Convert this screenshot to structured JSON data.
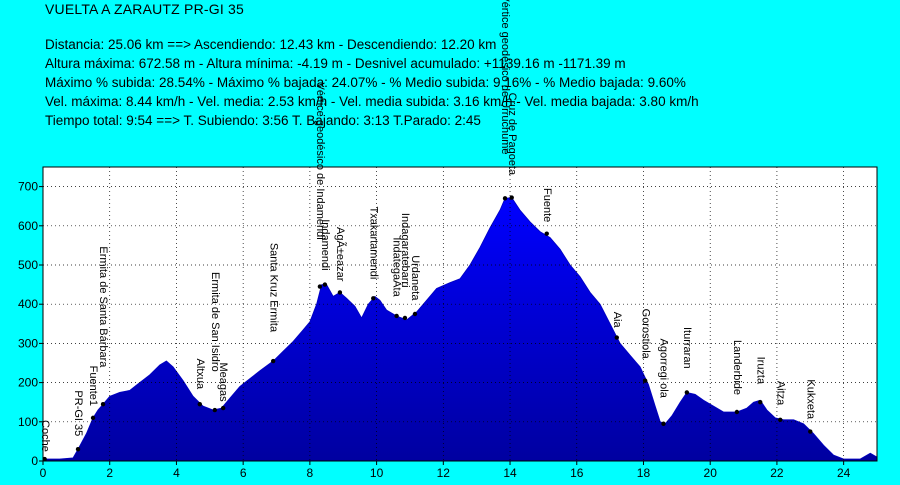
{
  "header": {
    "title": "VUELTA A ZARAUTZ PR-GI 35",
    "lines": [
      "Distancia: 25.06 km   ==>   Ascendiendo: 12.43 km - Descendiendo: 12.20 km",
      "Altura máxima: 672.58 m - Altura mínima: -4.19 m - Desnivel acumulado: +1139.16 m  -1171.39 m",
      "Máximo % subida: 28.54%  - Máximo % bajada: 24.07%  - % Medio subida: 9.16%  - % Medio bajada: 9.60%",
      "Vel. máxima: 8.44 km/h - Vel. media: 2.53 km/h - Vel. media subida: 3.16 km/h - Vel. media bajada: 3.80 km/h",
      "Tiempo total: 9:54   ==>   T. Subiendo: 3:56  T. Bajando: 3:13  T.Parado: 2:45"
    ]
  },
  "colors": {
    "background": "#00FFFF",
    "plot_background": "#FFFFFF",
    "fill_top": "#0000FF",
    "fill_bottom": "#0000A0",
    "grid": "#000000",
    "text": "#000000"
  },
  "chart_data": {
    "type": "area",
    "title": "",
    "xlabel": "",
    "ylabel": "",
    "xlim": [
      0,
      25
    ],
    "ylim": [
      0,
      750
    ],
    "x_ticks": [
      0,
      2,
      4,
      6,
      8,
      10,
      12,
      14,
      16,
      18,
      20,
      22,
      24
    ],
    "y_ticks": [
      0,
      100,
      200,
      300,
      400,
      500,
      600,
      700
    ],
    "grid": "dotted",
    "series": [
      {
        "name": "",
        "points": [
          [
            0,
            5
          ],
          [
            0.5,
            5
          ],
          [
            0.9,
            8
          ],
          [
            1.05,
            30
          ],
          [
            1.3,
            70
          ],
          [
            1.5,
            110
          ],
          [
            1.65,
            130
          ],
          [
            1.8,
            145
          ],
          [
            2.0,
            165
          ],
          [
            2.3,
            175
          ],
          [
            2.6,
            180
          ],
          [
            2.9,
            200
          ],
          [
            3.2,
            220
          ],
          [
            3.5,
            245
          ],
          [
            3.7,
            255
          ],
          [
            3.9,
            240
          ],
          [
            4.2,
            205
          ],
          [
            4.5,
            165
          ],
          [
            4.8,
            140
          ],
          [
            5.1,
            130
          ],
          [
            5.35,
            135
          ],
          [
            5.6,
            160
          ],
          [
            5.9,
            190
          ],
          [
            6.2,
            210
          ],
          [
            6.5,
            230
          ],
          [
            6.9,
            255
          ],
          [
            7.2,
            280
          ],
          [
            7.5,
            305
          ],
          [
            7.8,
            335
          ],
          [
            8.0,
            355
          ],
          [
            8.2,
            400
          ],
          [
            8.35,
            450
          ],
          [
            8.5,
            450
          ],
          [
            8.7,
            420
          ],
          [
            8.9,
            430
          ],
          [
            9.1,
            415
          ],
          [
            9.35,
            395
          ],
          [
            9.55,
            365
          ],
          [
            9.75,
            400
          ],
          [
            9.95,
            420
          ],
          [
            10.1,
            410
          ],
          [
            10.3,
            385
          ],
          [
            10.6,
            370
          ],
          [
            10.9,
            360
          ],
          [
            11.2,
            380
          ],
          [
            11.5,
            410
          ],
          [
            11.8,
            440
          ],
          [
            12.2,
            455
          ],
          [
            12.5,
            465
          ],
          [
            12.8,
            500
          ],
          [
            13.1,
            545
          ],
          [
            13.4,
            595
          ],
          [
            13.7,
            640
          ],
          [
            13.85,
            670
          ],
          [
            14.05,
            672
          ],
          [
            14.3,
            640
          ],
          [
            14.6,
            610
          ],
          [
            14.9,
            585
          ],
          [
            15.2,
            570
          ],
          [
            15.5,
            540
          ],
          [
            15.8,
            500
          ],
          [
            16.1,
            470
          ],
          [
            16.4,
            430
          ],
          [
            16.7,
            400
          ],
          [
            17.0,
            350
          ],
          [
            17.3,
            300
          ],
          [
            17.6,
            270
          ],
          [
            17.9,
            240
          ],
          [
            18.15,
            195
          ],
          [
            18.35,
            140
          ],
          [
            18.5,
            100
          ],
          [
            18.65,
            95
          ],
          [
            18.85,
            115
          ],
          [
            19.1,
            150
          ],
          [
            19.3,
            175
          ],
          [
            19.55,
            170
          ],
          [
            19.8,
            155
          ],
          [
            20.1,
            140
          ],
          [
            20.4,
            125
          ],
          [
            20.8,
            125
          ],
          [
            21.1,
            135
          ],
          [
            21.3,
            150
          ],
          [
            21.5,
            155
          ],
          [
            21.7,
            130
          ],
          [
            21.95,
            110
          ],
          [
            22.2,
            105
          ],
          [
            22.5,
            105
          ],
          [
            22.8,
            95
          ],
          [
            23.1,
            70
          ],
          [
            23.4,
            40
          ],
          [
            23.7,
            15
          ],
          [
            24.0,
            5
          ],
          [
            24.5,
            5
          ],
          [
            24.8,
            20
          ],
          [
            25.0,
            10
          ]
        ]
      }
    ],
    "waypoints": [
      {
        "x": 0.05,
        "y": 5,
        "label": "Coche"
      },
      {
        "x": 1.05,
        "y": 30,
        "label": "PR-GI 35"
      },
      {
        "x": 1.5,
        "y": 110,
        "label": "Fuente1"
      },
      {
        "x": 1.8,
        "y": 145,
        "label": "Ermita de Santa Bárbara"
      },
      {
        "x": 4.7,
        "y": 145,
        "label": "Altxua"
      },
      {
        "x": 5.15,
        "y": 130,
        "label": "Ermita de San Isidro"
      },
      {
        "x": 5.4,
        "y": 135,
        "label": "Meagas"
      },
      {
        "x": 6.9,
        "y": 255,
        "label": "Santa Kruz Ermita"
      },
      {
        "x": 8.3,
        "y": 445,
        "label": "Vértice geodésico de Indamendi"
      },
      {
        "x": 8.45,
        "y": 450,
        "label": "Indamendi"
      },
      {
        "x": 8.9,
        "y": 430,
        "label": "AgÃ±eazar"
      },
      {
        "x": 9.9,
        "y": 415,
        "label": "Txakartamendi"
      },
      {
        "x": 10.6,
        "y": 370,
        "label": "IndategaÃta"
      },
      {
        "x": 10.85,
        "y": 365,
        "label": "Indagaratebarri"
      },
      {
        "x": 11.15,
        "y": 375,
        "label": "Urdaneta"
      },
      {
        "x": 13.85,
        "y": 670,
        "label": "Vértice geodésico de Urruchume"
      },
      {
        "x": 14.05,
        "y": 672,
        "label": "Cruz de Pagoeta"
      },
      {
        "x": 15.1,
        "y": 580,
        "label": "Fuente"
      },
      {
        "x": 17.2,
        "y": 315,
        "label": "Aia"
      },
      {
        "x": 18.05,
        "y": 205,
        "label": "Gorostiola"
      },
      {
        "x": 18.6,
        "y": 95,
        "label": "Agorregi ola"
      },
      {
        "x": 19.3,
        "y": 175,
        "label": "Iturraran"
      },
      {
        "x": 20.8,
        "y": 125,
        "label": "Landerbide"
      },
      {
        "x": 21.5,
        "y": 150,
        "label": "Iruzta"
      },
      {
        "x": 22.1,
        "y": 105,
        "label": "Aitza"
      },
      {
        "x": 23.0,
        "y": 75,
        "label": "Kukxeta"
      }
    ]
  }
}
